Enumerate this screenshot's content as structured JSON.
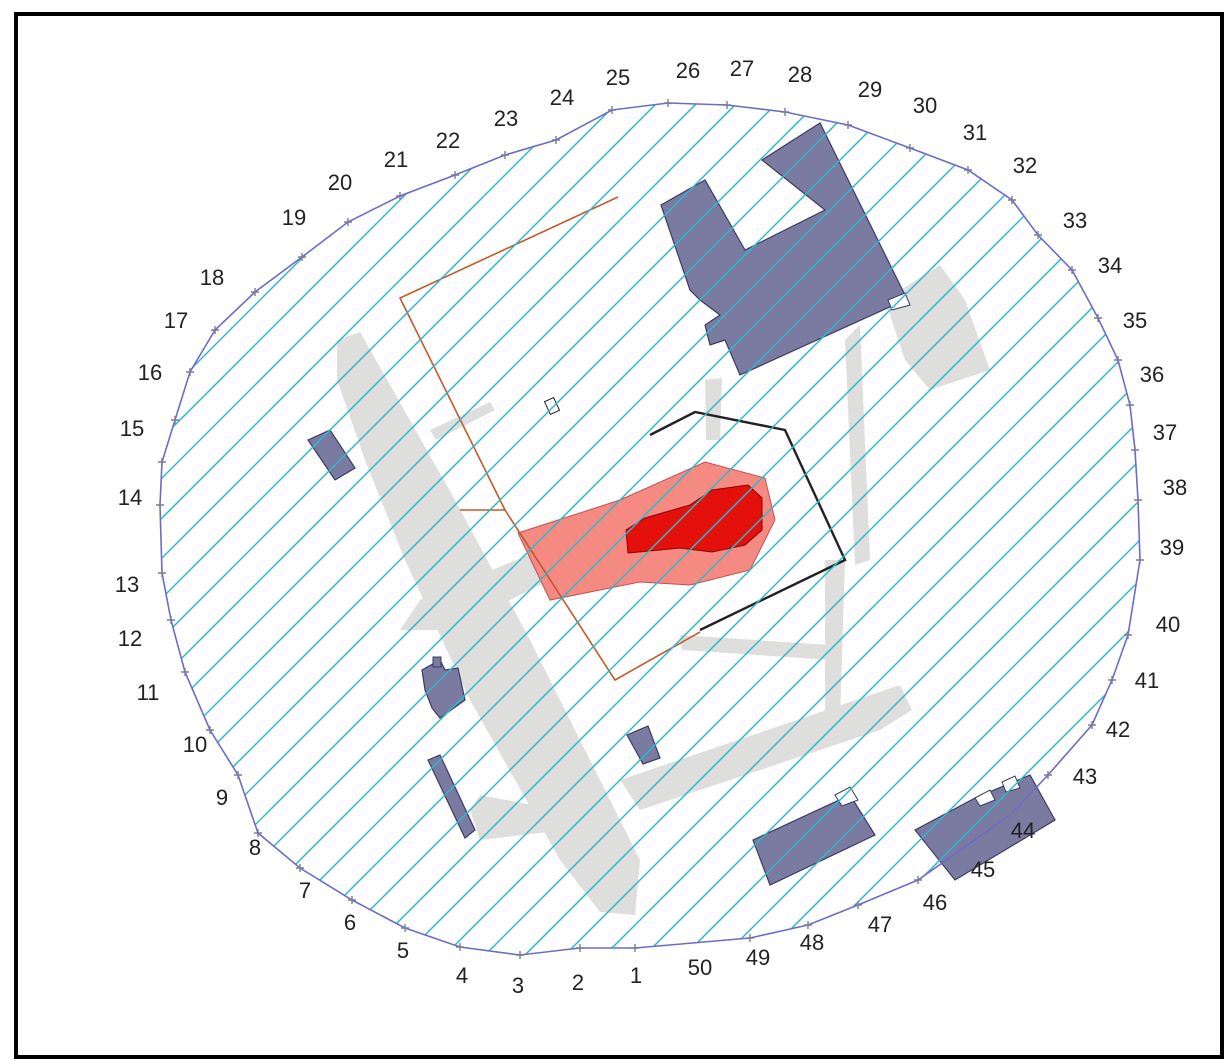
{
  "diagram": {
    "boundary_labels": [
      "1",
      "2",
      "3",
      "4",
      "5",
      "6",
      "7",
      "8",
      "9",
      "10",
      "11",
      "12",
      "13",
      "14",
      "15",
      "16",
      "17",
      "18",
      "19",
      "20",
      "21",
      "22",
      "23",
      "24",
      "25",
      "26",
      "27",
      "28",
      "29",
      "30",
      "31",
      "32",
      "33",
      "34",
      "35",
      "36",
      "37",
      "38",
      "39",
      "40",
      "41",
      "42",
      "43",
      "44",
      "45",
      "46",
      "47",
      "48",
      "49",
      "50"
    ],
    "colors": {
      "boundary": "#6c6cc8",
      "hatch": "#2cb8cf",
      "building": "#7b7ba2",
      "building_stroke": "#3a3a66",
      "pavement": "#dededc",
      "zone_outer": "#f48a82",
      "zone_inner": "#e4100c",
      "outline_orange": "#c25a2a",
      "outline_dark": "#222222",
      "label": "#222222"
    }
  }
}
